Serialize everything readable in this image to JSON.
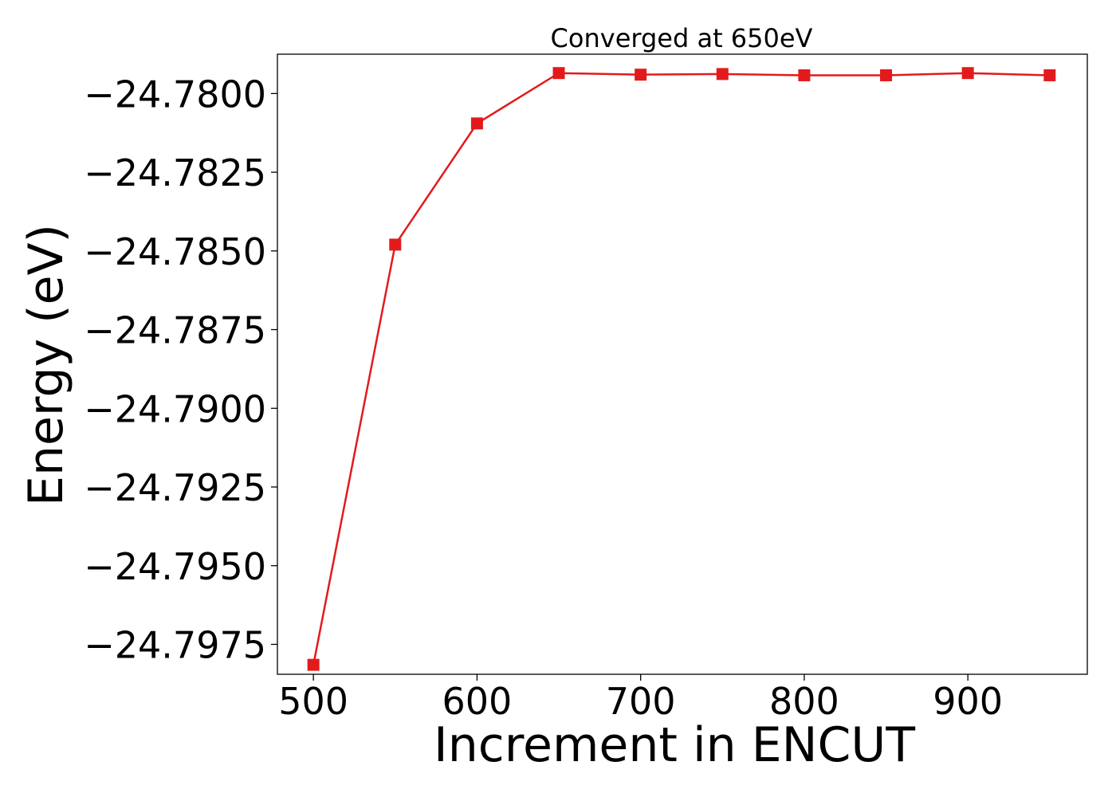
{
  "chart_data": {
    "type": "line",
    "title": "Converged at 650eV",
    "xlabel": "Increment in ENCUT",
    "ylabel": "Energy (eV)",
    "x": [
      500,
      550,
      600,
      650,
      700,
      750,
      800,
      850,
      900,
      950
    ],
    "series": [
      {
        "name": "",
        "values": [
          -24.79815,
          -24.7848,
          -24.78095,
          -24.77935,
          -24.7794,
          -24.77938,
          -24.77942,
          -24.77942,
          -24.77935,
          -24.77942
        ]
      }
    ],
    "xlim": [
      478,
      973
    ],
    "ylim": [
      -24.79845,
      -24.77875
    ],
    "xticks": [
      500,
      600,
      700,
      800,
      900
    ],
    "yticks": [
      -24.78,
      -24.7825,
      -24.785,
      -24.7875,
      -24.79,
      -24.7925,
      -24.795,
      -24.7975
    ],
    "xtick_labels": [
      "500",
      "600",
      "700",
      "800",
      "900"
    ],
    "ytick_labels": [
      "−24.7800",
      "−24.7825",
      "−24.7850",
      "−24.7875",
      "−24.7900",
      "−24.7925",
      "−24.7950",
      "−24.7975"
    ],
    "grid": false,
    "legend": "none",
    "line_color": "#e31a1c",
    "marker": "square"
  }
}
